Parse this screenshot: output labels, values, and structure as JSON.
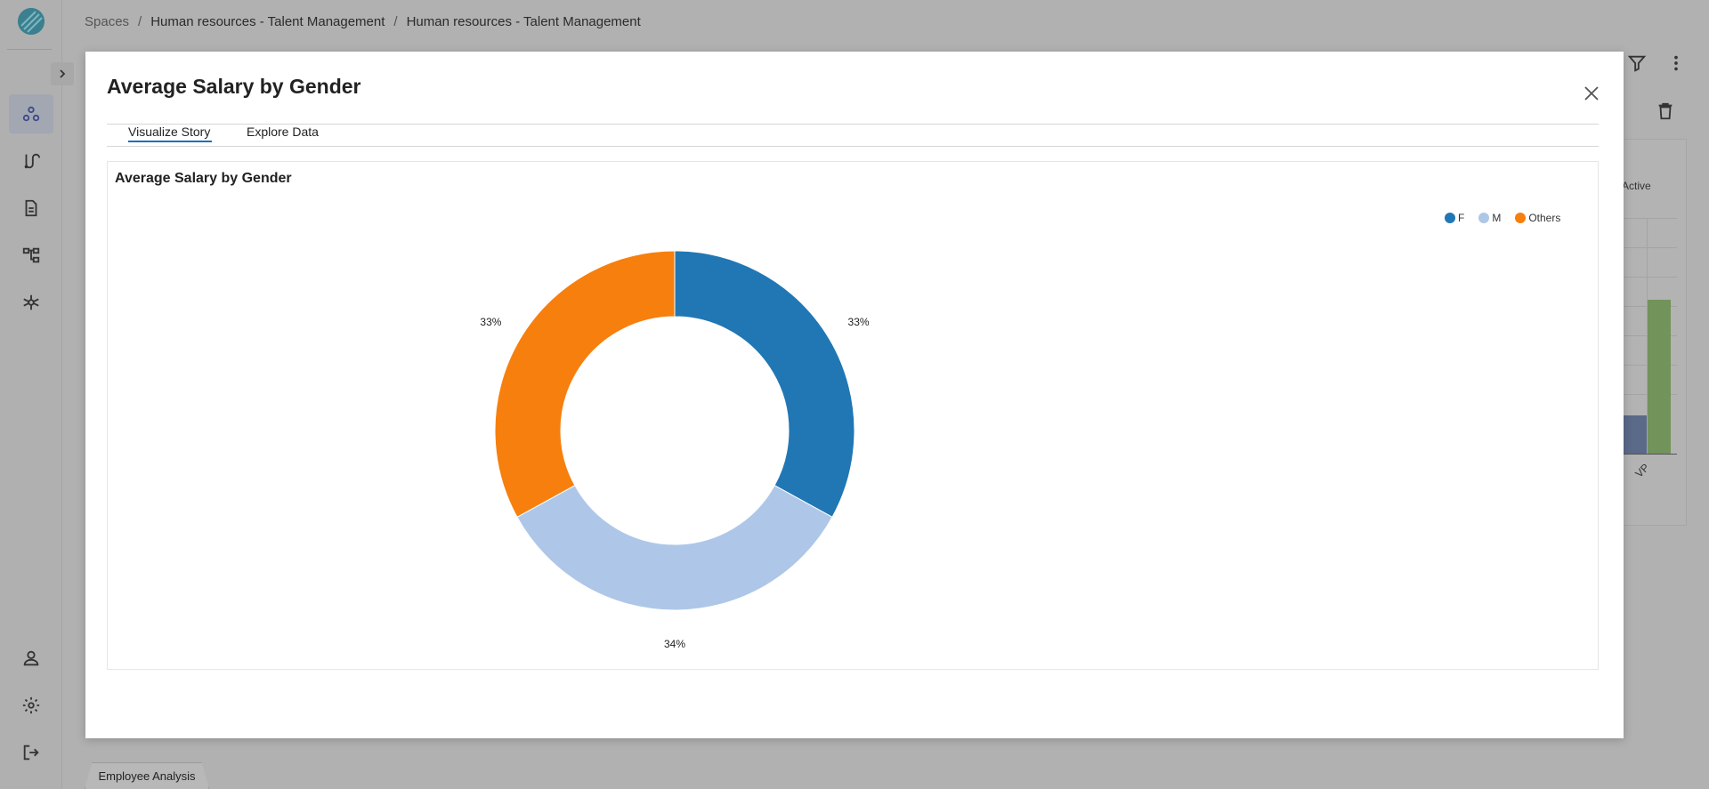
{
  "breadcrumb": {
    "root": "Spaces",
    "level1": "Human resources - Talent Management",
    "level2": "Human resources - Talent Management"
  },
  "background": {
    "card_partial_label": "Active",
    "axis_label": "VP",
    "bottom_tab": "Employee Analysis"
  },
  "modal": {
    "title": "Average Salary by Gender",
    "tabs": [
      {
        "label": "Visualize Story",
        "active": true
      },
      {
        "label": "Explore Data",
        "active": false
      }
    ]
  },
  "chart_data": {
    "type": "pie",
    "donut": true,
    "title": "Average Salary by Gender",
    "categories": [
      "F",
      "M",
      "Others"
    ],
    "values": [
      33,
      34,
      33
    ],
    "labels": [
      "33%",
      "34%",
      "33%"
    ],
    "colors": [
      "#2077b4",
      "#aec7e8",
      "#f77f0e"
    ],
    "legend_position": "top-right"
  }
}
